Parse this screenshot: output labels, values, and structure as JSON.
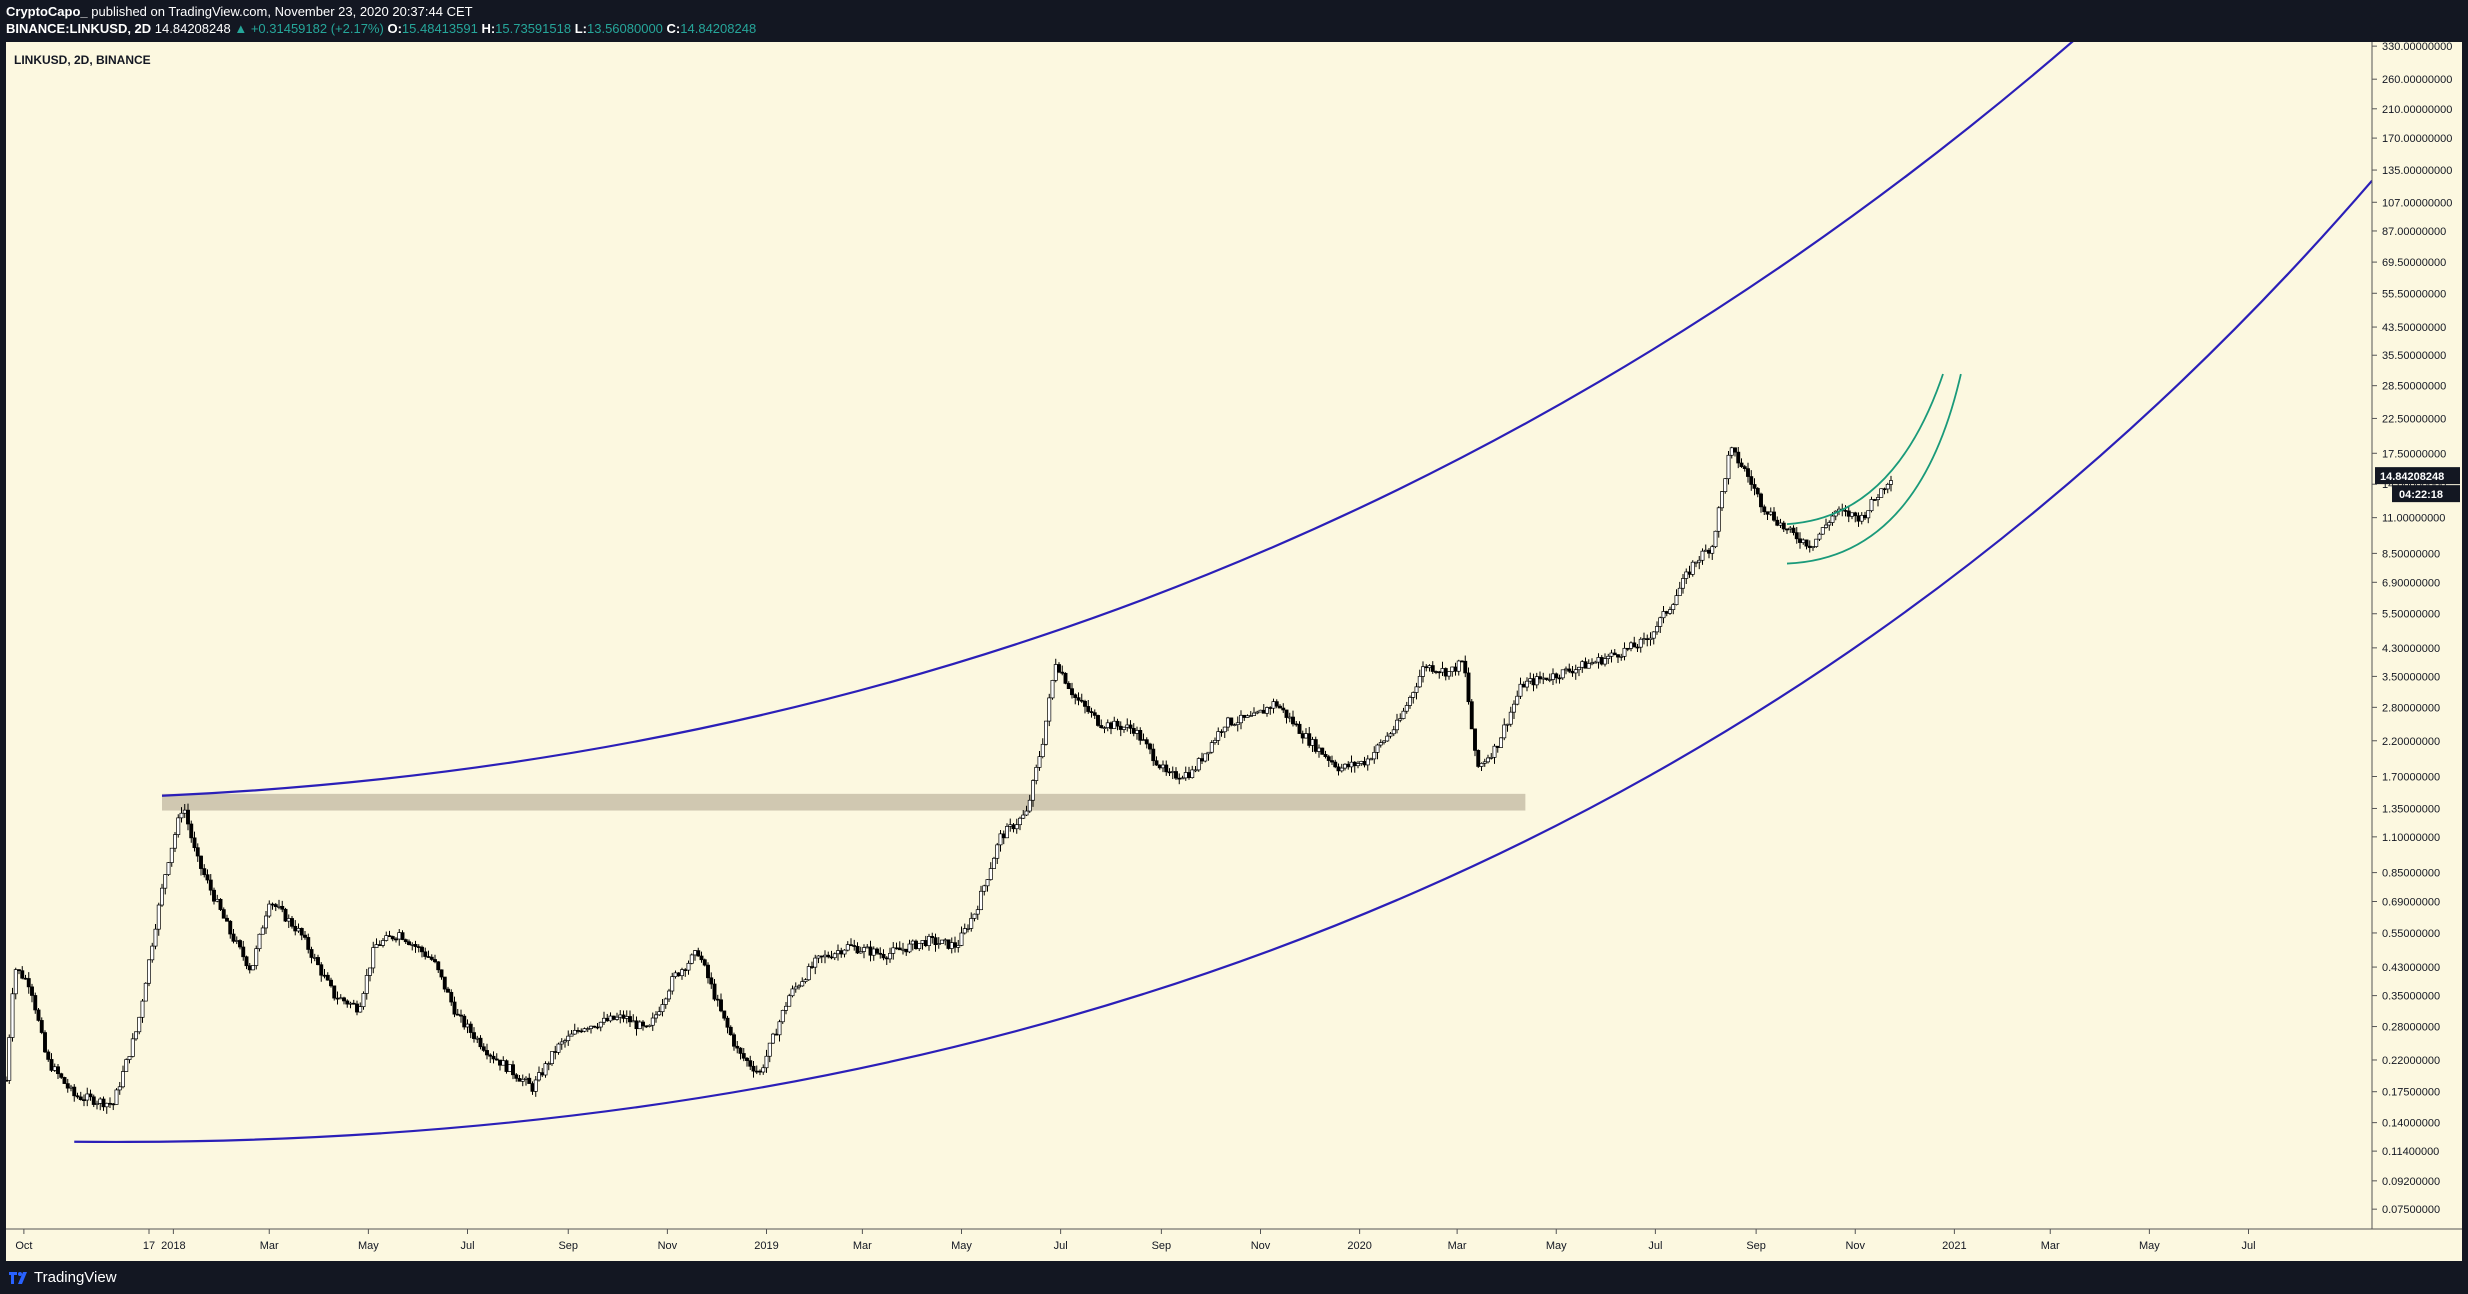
{
  "header": {
    "author": "CryptoCapo_",
    "publish_text": "published on TradingView.com, November 23, 2020 20:37:44 CET",
    "symbol": "BINANCE:LINKUSD, 2D",
    "last": "14.84208248",
    "change": "▲ +0.31459182 (+2.17%)",
    "o_label": "O:",
    "o_value": "15.48413591",
    "h_label": "H:",
    "h_value": "15.73591518",
    "l_label": "L:",
    "l_value": "13.56080000",
    "c_label": "C:",
    "c_value": "14.84208248"
  },
  "footer": {
    "brand": "TradingView"
  },
  "colors": {
    "background": "#fcf8e0",
    "candle": "#000000",
    "channel": "#2b1fb8",
    "inner_channel": "#1a9a7a",
    "support_zone": "#c8c0a8",
    "frame": "#131722"
  },
  "chart_data": {
    "type": "candlestick",
    "title": "LINKUSD, 2D, BINANCE",
    "y_scale": "log",
    "ylim": [
      0.065,
      340
    ],
    "xlim": [
      "2017-09-20",
      "2021-09-15"
    ],
    "x_tick_labels": [
      "Oct",
      "17",
      "2018",
      "Mar",
      "May",
      "Jul",
      "Sep",
      "Nov",
      "2019",
      "Mar",
      "May",
      "Jul",
      "Sep",
      "Nov",
      "2020",
      "Mar",
      "May",
      "Jul",
      "Sep",
      "Nov",
      "2021",
      "Mar",
      "May",
      "Jul"
    ],
    "x_tick_dates": [
      "2017-10-01",
      "2017-12-17",
      "2018-01-01",
      "2018-03-01",
      "2018-05-01",
      "2018-07-01",
      "2018-09-01",
      "2018-11-01",
      "2019-01-01",
      "2019-03-01",
      "2019-05-01",
      "2019-07-01",
      "2019-09-01",
      "2019-11-01",
      "2020-01-01",
      "2020-03-01",
      "2020-05-01",
      "2020-07-01",
      "2020-09-01",
      "2020-11-01",
      "2021-01-01",
      "2021-03-01",
      "2021-05-01",
      "2021-07-01"
    ],
    "y_tick_labels": [
      "330.00000000",
      "260.00000000",
      "210.00000000",
      "170.00000000",
      "135.00000000",
      "107.00000000",
      "87.00000000",
      "69.50000000",
      "55.50000000",
      "43.50000000",
      "35.50000000",
      "28.50000000",
      "22.50000000",
      "17.50000000",
      "14.00000000",
      "11.00000000",
      "8.50000000",
      "6.90000000",
      "5.50000000",
      "4.30000000",
      "3.50000000",
      "2.80000000",
      "2.20000000",
      "1.70000000",
      "1.35000000",
      "1.10000000",
      "0.85000000",
      "0.69000000",
      "0.55000000",
      "0.43000000",
      "0.35000000",
      "0.28000000",
      "0.22000000",
      "0.17500000",
      "0.14000000",
      "0.11400000",
      "0.09200000",
      "0.07500000"
    ],
    "y_tick_values": [
      330,
      260,
      210,
      170,
      135,
      107,
      87,
      69.5,
      55.5,
      43.5,
      35.5,
      28.5,
      22.5,
      17.5,
      14,
      11,
      8.5,
      6.9,
      5.5,
      4.3,
      3.5,
      2.8,
      2.2,
      1.7,
      1.35,
      1.1,
      0.85,
      0.69,
      0.55,
      0.43,
      0.35,
      0.28,
      0.22,
      0.175,
      0.14,
      0.114,
      0.092,
      0.075
    ],
    "last_price_label": "14.84208248",
    "countdown_label": "04:22:18",
    "close_path": [
      [
        "2017-09-20",
        0.19
      ],
      [
        "2017-09-25",
        0.43
      ],
      [
        "2017-10-05",
        0.38
      ],
      [
        "2017-10-15",
        0.22
      ],
      [
        "2017-11-01",
        0.17
      ],
      [
        "2017-11-25",
        0.16
      ],
      [
        "2017-12-10",
        0.28
      ],
      [
        "2017-12-20",
        0.55
      ],
      [
        "2017-12-28",
        0.9
      ],
      [
        "2018-01-07",
        1.4
      ],
      [
        "2018-01-15",
        0.95
      ],
      [
        "2018-02-05",
        0.55
      ],
      [
        "2018-02-18",
        0.42
      ],
      [
        "2018-03-01",
        0.7
      ],
      [
        "2018-03-20",
        0.55
      ],
      [
        "2018-04-10",
        0.35
      ],
      [
        "2018-04-25",
        0.32
      ],
      [
        "2018-05-05",
        0.5
      ],
      [
        "2018-05-20",
        0.55
      ],
      [
        "2018-06-10",
        0.45
      ],
      [
        "2018-06-25",
        0.3
      ],
      [
        "2018-07-15",
        0.23
      ],
      [
        "2018-08-10",
        0.18
      ],
      [
        "2018-08-25",
        0.24
      ],
      [
        "2018-09-10",
        0.28
      ],
      [
        "2018-10-05",
        0.3
      ],
      [
        "2018-10-20",
        0.27
      ],
      [
        "2018-11-05",
        0.4
      ],
      [
        "2018-11-20",
        0.48
      ],
      [
        "2018-12-05",
        0.3
      ],
      [
        "2018-12-15",
        0.23
      ],
      [
        "2018-12-28",
        0.2
      ],
      [
        "2019-01-15",
        0.35
      ],
      [
        "2019-02-01",
        0.45
      ],
      [
        "2019-02-20",
        0.5
      ],
      [
        "2019-03-15",
        0.47
      ],
      [
        "2019-04-10",
        0.52
      ],
      [
        "2019-04-28",
        0.5
      ],
      [
        "2019-05-10",
        0.65
      ],
      [
        "2019-05-25",
        1.1
      ],
      [
        "2019-06-10",
        1.3
      ],
      [
        "2019-06-20",
        2.2
      ],
      [
        "2019-06-28",
        3.9
      ],
      [
        "2019-07-10",
        3.0
      ],
      [
        "2019-07-25",
        2.5
      ],
      [
        "2019-08-15",
        2.4
      ],
      [
        "2019-09-05",
        1.7
      ],
      [
        "2019-09-20",
        1.75
      ],
      [
        "2019-10-10",
        2.5
      ],
      [
        "2019-10-28",
        2.6
      ],
      [
        "2019-11-10",
        2.9
      ],
      [
        "2019-12-01",
        2.2
      ],
      [
        "2019-12-20",
        1.8
      ],
      [
        "2020-01-05",
        1.9
      ],
      [
        "2020-01-25",
        2.5
      ],
      [
        "2020-02-10",
        3.8
      ],
      [
        "2020-02-25",
        3.6
      ],
      [
        "2020-03-05",
        3.9
      ],
      [
        "2020-03-13",
        1.8
      ],
      [
        "2020-03-25",
        2.1
      ],
      [
        "2020-04-10",
        3.3
      ],
      [
        "2020-05-05",
        3.6
      ],
      [
        "2020-06-01",
        4.0
      ],
      [
        "2020-06-25",
        4.5
      ],
      [
        "2020-07-10",
        5.8
      ],
      [
        "2020-07-25",
        8.0
      ],
      [
        "2020-08-05",
        9.0
      ],
      [
        "2020-08-16",
        18.0
      ],
      [
        "2020-08-25",
        15.5
      ],
      [
        "2020-09-05",
        12.0
      ],
      [
        "2020-09-20",
        10.0
      ],
      [
        "2020-10-05",
        9.0
      ],
      [
        "2020-10-20",
        11.5
      ],
      [
        "2020-11-05",
        11.0
      ],
      [
        "2020-11-23",
        14.84
      ]
    ]
  }
}
